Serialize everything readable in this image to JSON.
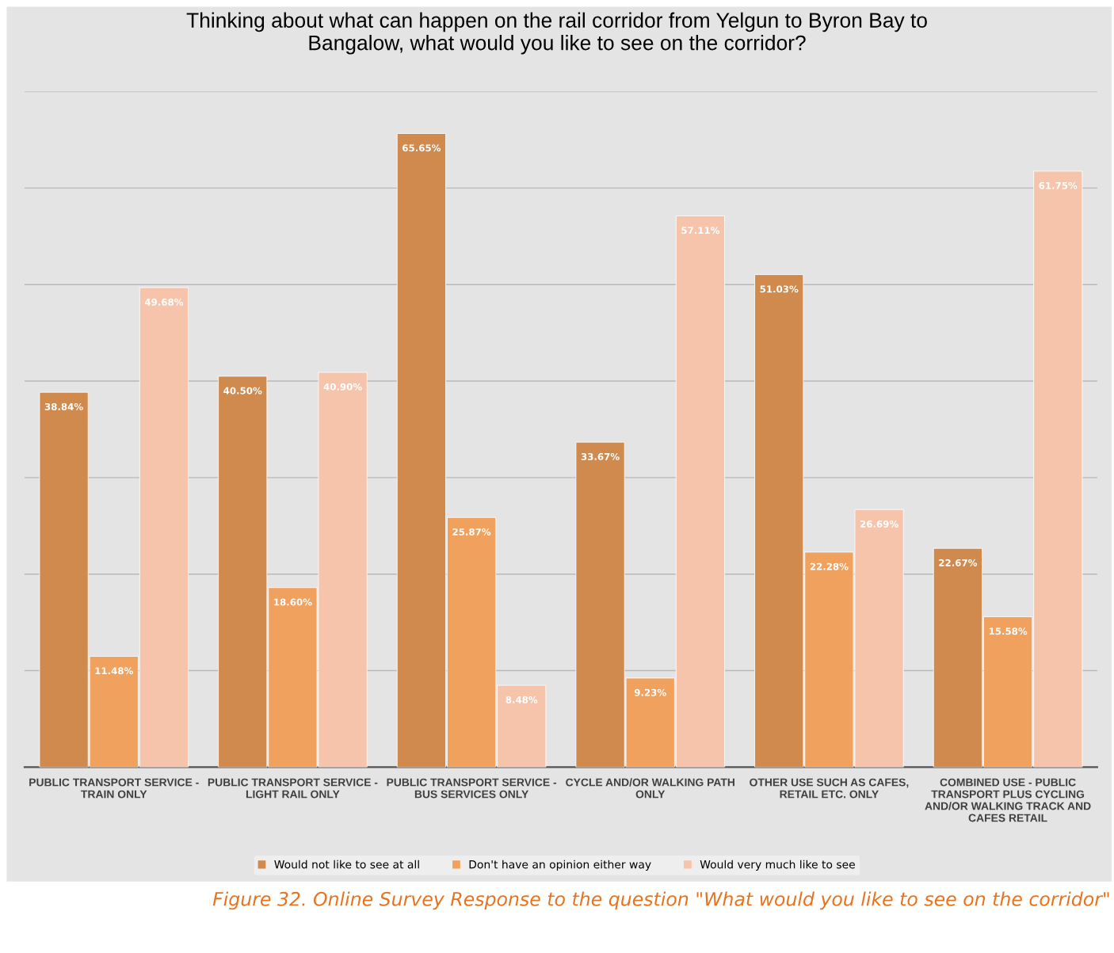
{
  "chart_data": {
    "type": "bar",
    "title": "Thinking about what can happen on the rail corridor from Yelgun to Byron Bay to\nBangalow, what would you like to see on the corridor?",
    "categories": [
      "PUBLIC TRANSPORT SERVICE -\nTRAIN ONLY",
      "PUBLIC TRANSPORT SERVICE -\nLIGHT RAIL ONLY",
      "PUBLIC TRANSPORT SERVICE -\nBUS SERVICES ONLY",
      "CYCLE AND/OR WALKING PATH\nONLY",
      "OTHER USE SUCH AS CAFES,\nRETAIL ETC. ONLY",
      "COMBINED USE - PUBLIC\nTRANSPORT PLUS CYCLING\nAND/OR WALKING TRACK AND\nCAFES RETAIL"
    ],
    "series": [
      {
        "name": "Would not like to see at all",
        "color": "#d08a4e",
        "values": [
          38.84,
          40.5,
          65.65,
          33.67,
          51.03,
          22.67
        ],
        "value_labels": [
          "38.84%",
          "40.50%",
          "65.65%",
          "33.67%",
          "51.03%",
          "22.67%"
        ]
      },
      {
        "name": "Don't have an opinion either way",
        "color": "#f0a15e",
        "values": [
          11.48,
          18.6,
          25.87,
          9.23,
          22.28,
          15.58
        ],
        "value_labels": [
          "11.48%",
          "18.60%",
          "25.87%",
          "9.23%",
          "22.28%",
          "15.58%"
        ]
      },
      {
        "name": "Would very much like to see",
        "color": "#f5c4aa",
        "values": [
          49.68,
          40.9,
          8.48,
          57.11,
          26.69,
          61.75
        ],
        "value_labels": [
          "49.68%",
          "40.90%",
          "8.48%",
          "57.11%",
          "26.69%",
          "61.75%"
        ]
      }
    ],
    "ylim": [
      0,
      70
    ],
    "yticks": [
      {
        "value": 0,
        "label": null
      },
      {
        "value": 10,
        "label": null
      },
      {
        "value": 20,
        "label": null
      },
      {
        "value": 30,
        "label": null
      },
      {
        "value": 40,
        "label": null
      },
      {
        "value": 50,
        "label": null
      },
      {
        "value": 60,
        "label": null
      },
      {
        "value": 70,
        "label": null
      }
    ],
    "grid": "y",
    "legend": "bottom",
    "annotations": [
      "Figure 32. Online Survey Response to the question \"What would you like to see on the corridor\""
    ]
  }
}
